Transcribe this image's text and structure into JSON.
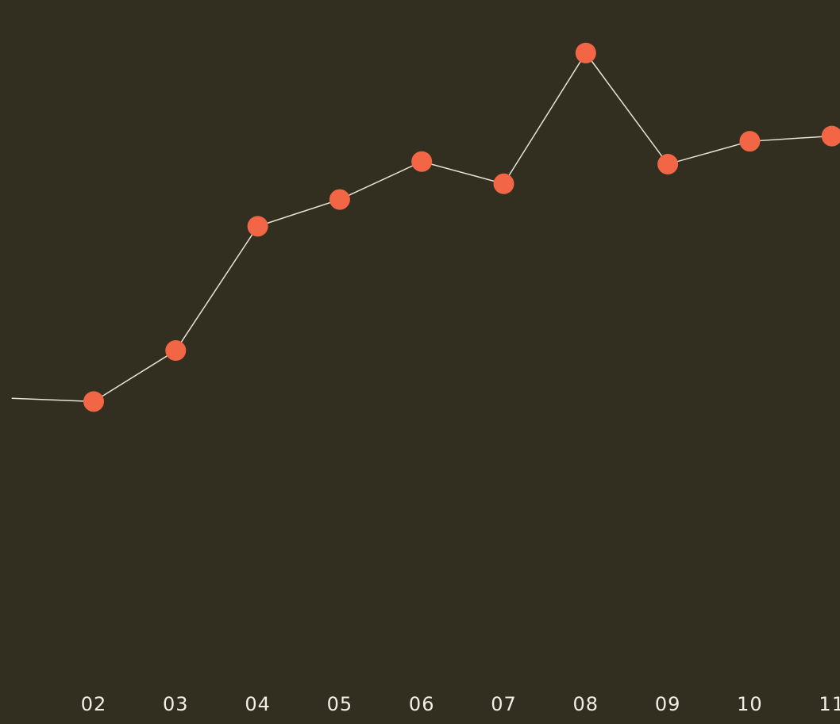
{
  "chart_data": {
    "type": "line",
    "title": "",
    "xlabel": "",
    "ylabel": "",
    "categories": [
      "02",
      "03",
      "04",
      "05",
      "06",
      "07",
      "08",
      "09",
      "10",
      "11"
    ],
    "series": [
      {
        "values": [
          31.5,
          39.3,
          58.3,
          62.4,
          68.2,
          64.8,
          84.8,
          67.8,
          71.3,
          72.1
        ]
      }
    ],
    "leading_value": 32.0,
    "ylim": [
      -12,
      90
    ],
    "grid": false,
    "legend": "none",
    "colors": {
      "background": "#332f20",
      "line": "#e8e4d6",
      "marker": "#f26646",
      "tick_text": "#f2efe4"
    }
  }
}
